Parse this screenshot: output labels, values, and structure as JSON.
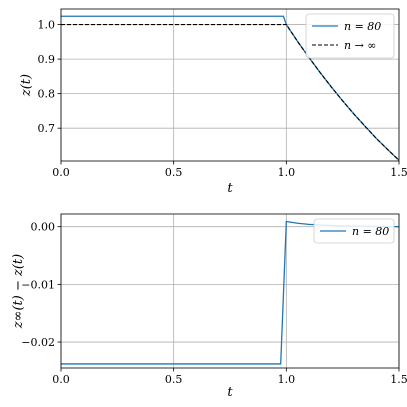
{
  "colors": {
    "n80": "#1f77b4",
    "ninf": "#000000"
  },
  "chart_data": [
    {
      "type": "line",
      "xlabel": "t",
      "ylabel": "z(t)",
      "xlim": [
        0.0,
        1.5
      ],
      "ylim": [
        0.605,
        1.045
      ],
      "xticks": [
        0.0,
        0.5,
        1.0,
        1.5
      ],
      "xtick_labels": [
        "0.0",
        "0.5",
        "1.0",
        "1.5"
      ],
      "yticks": [
        0.7,
        0.8,
        0.9,
        1.0
      ],
      "ytick_labels": [
        "0.7",
        "0.8",
        "0.9",
        "1.0"
      ],
      "grid": true,
      "legend_position": "top-right",
      "series": [
        {
          "name": "n = 80",
          "style": "solid",
          "x": [
            0.0,
            0.987,
            1.0,
            1.05,
            1.1,
            1.15,
            1.2,
            1.25,
            1.3,
            1.35,
            1.4,
            1.45,
            1.5
          ],
          "y": [
            1.024,
            1.024,
            1.0,
            0.951,
            0.905,
            0.861,
            0.819,
            0.779,
            0.741,
            0.705,
            0.67,
            0.638,
            0.607
          ]
        },
        {
          "name": "n → ∞",
          "style": "dashed",
          "x": [
            0.0,
            1.0,
            1.05,
            1.1,
            1.15,
            1.2,
            1.25,
            1.3,
            1.35,
            1.4,
            1.45,
            1.5
          ],
          "y": [
            1.0,
            1.0,
            0.951,
            0.905,
            0.861,
            0.819,
            0.779,
            0.741,
            0.705,
            0.67,
            0.638,
            0.607
          ]
        }
      ]
    },
    {
      "type": "line",
      "xlabel": "t",
      "ylabel": "z∞(t) − z(t)",
      "xlim": [
        0.0,
        1.5
      ],
      "ylim": [
        -0.0245,
        0.0022
      ],
      "xticks": [
        0.0,
        0.5,
        1.0,
        1.5
      ],
      "xtick_labels": [
        "0.0",
        "0.5",
        "1.0",
        "1.5"
      ],
      "yticks": [
        -0.02,
        -0.01,
        0.0
      ],
      "ytick_labels": [
        "−0.02",
        "−0.01",
        "0.00"
      ],
      "grid": true,
      "legend_position": "top-right",
      "series": [
        {
          "name": "n = 80",
          "style": "solid",
          "x": [
            0.0,
            0.975,
            1.0,
            1.05,
            1.1,
            1.2,
            1.3,
            1.4,
            1.5
          ],
          "y": [
            -0.0238,
            -0.0238,
            0.0009,
            0.0006,
            0.0004,
            0.0002,
            0.0001,
            5e-05,
            0.0
          ]
        }
      ]
    }
  ]
}
